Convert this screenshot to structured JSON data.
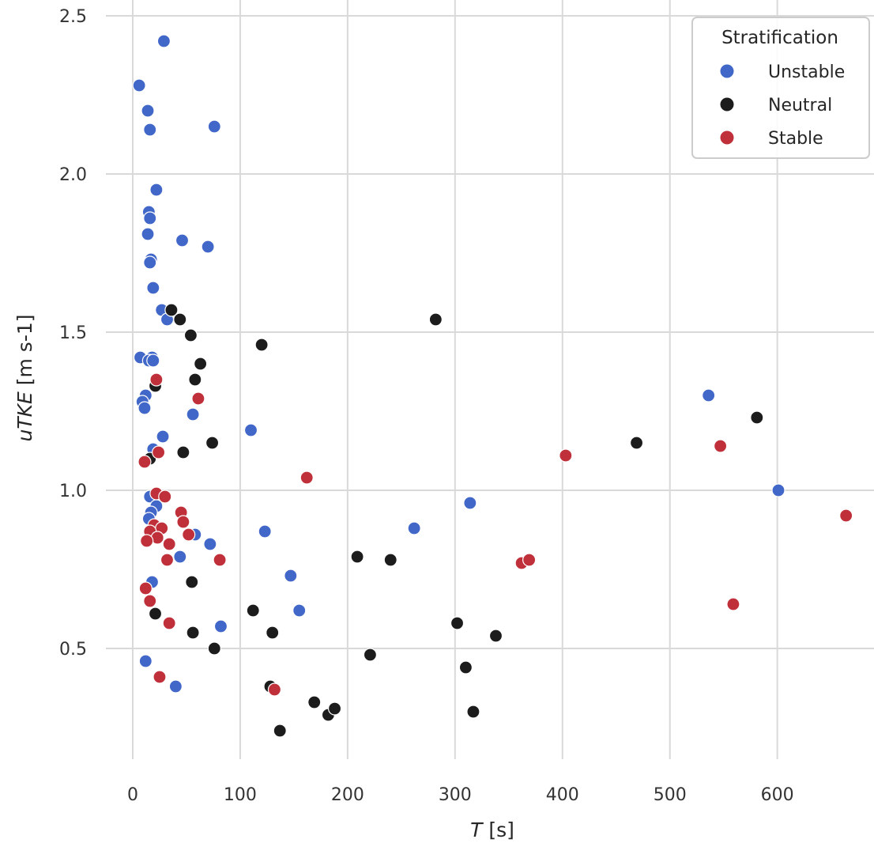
{
  "chart_data": {
    "type": "scatter",
    "xlabel": {
      "var": "T",
      "unit": " [s]"
    },
    "ylabel": {
      "var": "uTKE",
      "unit": " [m s-1]"
    },
    "xlim": [
      -25,
      690
    ],
    "ylim": [
      0.15,
      2.55
    ],
    "xticks": [
      0,
      100,
      200,
      300,
      400,
      500,
      600
    ],
    "yticks": [
      0.5,
      1.0,
      1.5,
      2.0,
      2.5
    ],
    "ytick_labels": [
      "0.5",
      "1.0",
      "1.5",
      "2.0",
      "2.5"
    ],
    "grid": true,
    "legend": {
      "title": "Stratification",
      "position": "top-right"
    },
    "series": [
      {
        "name": "Unstable",
        "color": "#4167c8",
        "points": [
          [
            29,
            2.42
          ],
          [
            6,
            2.28
          ],
          [
            14,
            2.2
          ],
          [
            16,
            2.14
          ],
          [
            76,
            2.15
          ],
          [
            22,
            1.95
          ],
          [
            15,
            1.88
          ],
          [
            16,
            1.86
          ],
          [
            14,
            1.81
          ],
          [
            46,
            1.79
          ],
          [
            70,
            1.77
          ],
          [
            17,
            1.73
          ],
          [
            16,
            1.72
          ],
          [
            19,
            1.64
          ],
          [
            27,
            1.57
          ],
          [
            32,
            1.54
          ],
          [
            7,
            1.42
          ],
          [
            18,
            1.42
          ],
          [
            15,
            1.41
          ],
          [
            19,
            1.41
          ],
          [
            12,
            1.3
          ],
          [
            9,
            1.28
          ],
          [
            11,
            1.26
          ],
          [
            56,
            1.24
          ],
          [
            110,
            1.19
          ],
          [
            28,
            1.17
          ],
          [
            19,
            1.13
          ],
          [
            16,
            0.98
          ],
          [
            22,
            0.95
          ],
          [
            17,
            0.93
          ],
          [
            15,
            0.91
          ],
          [
            58,
            0.86
          ],
          [
            123,
            0.87
          ],
          [
            72,
            0.83
          ],
          [
            44,
            0.79
          ],
          [
            147,
            0.73
          ],
          [
            18,
            0.71
          ],
          [
            155,
            0.62
          ],
          [
            82,
            0.57
          ],
          [
            12,
            0.46
          ],
          [
            40,
            0.38
          ],
          [
            262,
            0.88
          ],
          [
            314,
            0.96
          ],
          [
            536,
            1.3
          ],
          [
            601,
            1.0
          ]
        ]
      },
      {
        "name": "Neutral",
        "color": "#1c1c1c",
        "points": [
          [
            36,
            1.57
          ],
          [
            44,
            1.54
          ],
          [
            54,
            1.49
          ],
          [
            120,
            1.46
          ],
          [
            282,
            1.54
          ],
          [
            63,
            1.4
          ],
          [
            58,
            1.35
          ],
          [
            21,
            1.33
          ],
          [
            74,
            1.15
          ],
          [
            47,
            1.12
          ],
          [
            16,
            1.1
          ],
          [
            55,
            0.71
          ],
          [
            21,
            0.61
          ],
          [
            112,
            0.62
          ],
          [
            56,
            0.55
          ],
          [
            130,
            0.55
          ],
          [
            76,
            0.5
          ],
          [
            221,
            0.48
          ],
          [
            128,
            0.38
          ],
          [
            169,
            0.33
          ],
          [
            182,
            0.29
          ],
          [
            188,
            0.31
          ],
          [
            137,
            0.24
          ],
          [
            209,
            0.79
          ],
          [
            240,
            0.78
          ],
          [
            302,
            0.58
          ],
          [
            310,
            0.44
          ],
          [
            317,
            0.3
          ],
          [
            338,
            0.54
          ],
          [
            469,
            1.15
          ],
          [
            581,
            1.23
          ]
        ]
      },
      {
        "name": "Stable",
        "color": "#c0303a",
        "points": [
          [
            22,
            1.35
          ],
          [
            61,
            1.29
          ],
          [
            24,
            1.12
          ],
          [
            11,
            1.09
          ],
          [
            162,
            1.04
          ],
          [
            22,
            0.99
          ],
          [
            30,
            0.98
          ],
          [
            45,
            0.93
          ],
          [
            47,
            0.9
          ],
          [
            20,
            0.89
          ],
          [
            27,
            0.88
          ],
          [
            16,
            0.87
          ],
          [
            52,
            0.86
          ],
          [
            23,
            0.85
          ],
          [
            13,
            0.84
          ],
          [
            34,
            0.83
          ],
          [
            32,
            0.78
          ],
          [
            81,
            0.78
          ],
          [
            12,
            0.69
          ],
          [
            16,
            0.65
          ],
          [
            34,
            0.58
          ],
          [
            25,
            0.41
          ],
          [
            132,
            0.37
          ],
          [
            403,
            1.11
          ],
          [
            362,
            0.77
          ],
          [
            369,
            0.78
          ],
          [
            547,
            1.14
          ],
          [
            559,
            0.64
          ],
          [
            664,
            0.92
          ]
        ]
      }
    ]
  }
}
